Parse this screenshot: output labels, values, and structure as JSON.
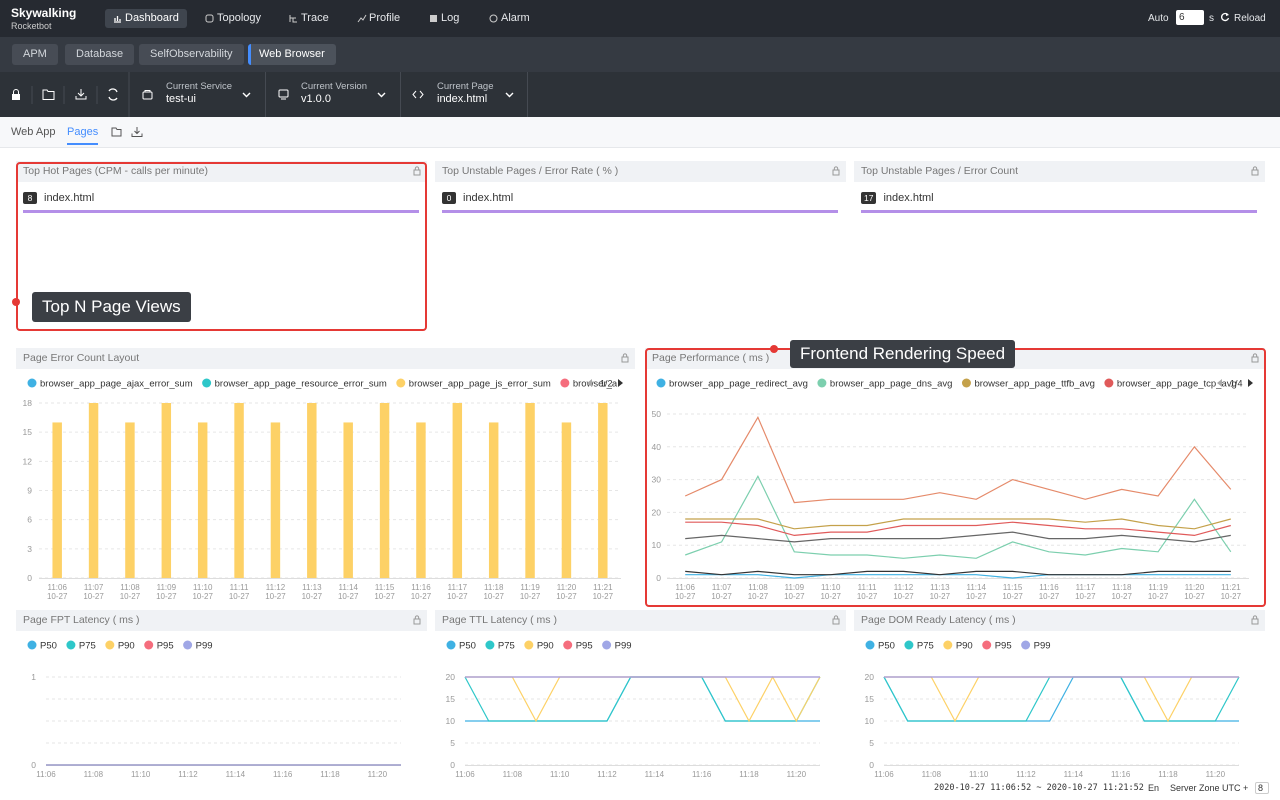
{
  "nav": {
    "logo": "Skywalking",
    "logo_sub": "Rocketbot",
    "menu": [
      "Dashboard",
      "Topology",
      "Trace",
      "Profile",
      "Log",
      "Alarm"
    ],
    "auto": "Auto",
    "interval": 6,
    "unit": "s",
    "reload": "Reload"
  },
  "groups": [
    "APM",
    "Database",
    "SelfObservability",
    "Web Browser"
  ],
  "selectors": [
    {
      "label": "Current Service",
      "value": "test-ui"
    },
    {
      "label": "Current Version",
      "value": "v1.0.0"
    },
    {
      "label": "Current Page",
      "value": "index.html"
    }
  ],
  "tabs": [
    "Web App",
    "Pages"
  ],
  "topn": [
    {
      "title": "Top Hot Pages (CPM - calls per minute)",
      "items": [
        {
          "count": 8,
          "label": "index.html"
        }
      ]
    },
    {
      "title": "Top Unstable Pages / Error Rate ( % )",
      "items": [
        {
          "count": 0,
          "label": "index.html"
        }
      ]
    },
    {
      "title": "Top Unstable Pages / Error Count",
      "items": [
        {
          "count": 17,
          "label": "index.html"
        }
      ]
    }
  ],
  "annotations": [
    "Top N Page Views",
    "Frontend Rendering Speed"
  ],
  "chart_data": [
    {
      "type": "bar",
      "title": "Page Error Count Layout",
      "legend_page": "1/2",
      "grid": true,
      "categories": [
        "11:06",
        "11:07",
        "11:08",
        "11:09",
        "11:10",
        "11:11",
        "11:12",
        "11:13",
        "11:14",
        "11:15",
        "11:16",
        "11:17",
        "11:18",
        "11:19",
        "11:20",
        "11:21"
      ],
      "x_sublabels": [
        "10-27",
        "10-27",
        "10-27",
        "10-27",
        "10-27",
        "10-27",
        "10-27",
        "10-27",
        "10-27",
        "10-27",
        "10-27",
        "10-27",
        "10-27",
        "10-27",
        "10-27",
        "10-27"
      ],
      "ylim": [
        0,
        18
      ],
      "yticks": [
        0,
        3,
        6,
        9,
        12,
        15,
        18
      ],
      "series": [
        {
          "name": "browser_app_page_ajax_error_sum",
          "color": "#3fb1e3",
          "values": [
            0,
            0,
            0,
            0,
            0,
            0,
            0,
            0,
            0,
            0,
            0,
            0,
            0,
            0,
            0,
            0
          ]
        },
        {
          "name": "browser_app_page_resource_error_sum",
          "color": "#2ec7c9",
          "values": [
            0,
            0,
            0,
            0,
            0,
            0,
            0,
            0,
            0,
            0,
            0,
            0,
            0,
            0,
            0,
            0
          ]
        },
        {
          "name": "browser_app_page_js_error_sum",
          "color": "#fdd166",
          "values": [
            16,
            18,
            16,
            18,
            16,
            18,
            16,
            18,
            16,
            18,
            16,
            18,
            16,
            18,
            16,
            18
          ]
        },
        {
          "name": "browser_a",
          "color": "#f56d7d",
          "values": [
            0,
            0,
            0,
            0,
            0,
            0,
            0,
            0,
            0,
            0,
            0,
            0,
            0,
            0,
            0,
            0
          ]
        }
      ]
    },
    {
      "type": "line",
      "title": "Page Performance ( ms )",
      "legend_page": "1/4",
      "grid": true,
      "categories": [
        "11:06",
        "11:07",
        "11:08",
        "11:09",
        "11:10",
        "11:11",
        "11:12",
        "11:13",
        "11:14",
        "11:15",
        "11:16",
        "11:17",
        "11:18",
        "11:19",
        "11:20",
        "11:21"
      ],
      "x_sublabels": [
        "10-27",
        "10-27",
        "10-27",
        "10-27",
        "10-27",
        "10-27",
        "10-27",
        "10-27",
        "10-27",
        "10-27",
        "10-27",
        "10-27",
        "10-27",
        "10-27",
        "10-27",
        "10-27"
      ],
      "ylim": [
        0,
        50
      ],
      "yticks": [
        0,
        10,
        20,
        30,
        40,
        50
      ],
      "series": [
        {
          "name": "browser_app_page_redirect_avg",
          "color": "#3fb1e3",
          "values": [
            1,
            1,
            1,
            0,
            1,
            1,
            1,
            1,
            1,
            0,
            1,
            1,
            1,
            1,
            1,
            1
          ]
        },
        {
          "name": "browser_app_page_dns_avg",
          "color": "#7ccfae",
          "values": [
            7,
            11,
            31,
            8,
            7,
            7,
            6,
            7,
            6,
            11,
            8,
            7,
            9,
            8,
            24,
            8
          ]
        },
        {
          "name": "browser_app_page_ttfb_avg",
          "color": "#c4a14a",
          "values": [
            18,
            18,
            18,
            15,
            16,
            16,
            18,
            18,
            18,
            18,
            18,
            17,
            18,
            16,
            15,
            18
          ]
        },
        {
          "name": "browser_app_page_tcp_avg",
          "color": "#e05a5a",
          "values": [
            17,
            17,
            16,
            13,
            14,
            14,
            16,
            16,
            16,
            17,
            16,
            15,
            15,
            14,
            13,
            16
          ]
        },
        {
          "color": "#e58a6a",
          "values": [
            25,
            30,
            49,
            23,
            24,
            24,
            24,
            26,
            24,
            30,
            27,
            24,
            27,
            25,
            40,
            27
          ]
        },
        {
          "color": "#666666",
          "values": [
            12,
            13,
            12,
            11,
            12,
            12,
            12,
            12,
            13,
            14,
            12,
            12,
            13,
            12,
            11,
            13
          ]
        },
        {
          "color": "#333333",
          "values": [
            2,
            1,
            2,
            1,
            1,
            2,
            2,
            1,
            2,
            2,
            1,
            1,
            1,
            2,
            2,
            2
          ]
        }
      ]
    },
    {
      "type": "line",
      "title": "Page FPT Latency ( ms )",
      "grid": true,
      "categories": [
        "11:06",
        null,
        "11:08",
        null,
        "11:10",
        null,
        "11:12",
        null,
        "11:14",
        null,
        "11:16",
        null,
        "11:18",
        null,
        "11:20",
        null
      ],
      "ylim": [
        0,
        1
      ],
      "yticks": [
        0,
        1
      ],
      "ygrid": [
        0.25,
        0.5,
        0.75
      ],
      "series": [
        {
          "name": "P50",
          "color": "#3fb1e3",
          "values": [
            0,
            0,
            0,
            0,
            0,
            0,
            0,
            0,
            0,
            0,
            0,
            0,
            0,
            0,
            0,
            0
          ]
        },
        {
          "name": "P75",
          "color": "#2ec7c9",
          "values": [
            0,
            0,
            0,
            0,
            0,
            0,
            0,
            0,
            0,
            0,
            0,
            0,
            0,
            0,
            0,
            0
          ]
        },
        {
          "name": "P90",
          "color": "#fdd166",
          "values": [
            0,
            0,
            0,
            0,
            0,
            0,
            0,
            0,
            0,
            0,
            0,
            0,
            0,
            0,
            0,
            0
          ]
        },
        {
          "name": "P95",
          "color": "#f56d7d",
          "values": [
            0,
            0,
            0,
            0,
            0,
            0,
            0,
            0,
            0,
            0,
            0,
            0,
            0,
            0,
            0,
            0
          ]
        },
        {
          "name": "P99",
          "color": "#a0a7e6",
          "values": [
            0,
            0,
            0,
            0,
            0,
            0,
            0,
            0,
            0,
            0,
            0,
            0,
            0,
            0,
            0,
            0
          ]
        }
      ]
    },
    {
      "type": "line",
      "title": "Page TTL Latency ( ms )",
      "grid": true,
      "categories": [
        "11:06",
        null,
        "11:08",
        null,
        "11:10",
        null,
        "11:12",
        null,
        "11:14",
        null,
        "11:16",
        null,
        "11:18",
        null,
        "11:20",
        null
      ],
      "ylim": [
        0,
        20
      ],
      "yticks": [
        0,
        5,
        10,
        15,
        20
      ],
      "series": [
        {
          "name": "P50",
          "color": "#3fb1e3",
          "values": [
            10,
            10,
            10,
            10,
            10,
            10,
            10,
            20,
            20,
            20,
            20,
            10,
            10,
            10,
            10,
            10
          ]
        },
        {
          "name": "P75",
          "color": "#2ec7c9",
          "values": [
            20,
            10,
            10,
            10,
            10,
            10,
            10,
            20,
            20,
            20,
            20,
            10,
            10,
            10,
            10,
            20
          ]
        },
        {
          "name": "P90",
          "color": "#fdd166",
          "values": [
            20,
            20,
            20,
            10,
            20,
            20,
            20,
            20,
            20,
            20,
            20,
            20,
            10,
            20,
            10,
            20
          ]
        },
        {
          "name": "P95",
          "color": "#f56d7d",
          "values": [
            20,
            20,
            20,
            20,
            20,
            20,
            20,
            20,
            20,
            20,
            20,
            20,
            20,
            20,
            20,
            20
          ]
        },
        {
          "name": "P99",
          "color": "#a0a7e6",
          "values": [
            20,
            20,
            20,
            20,
            20,
            20,
            20,
            20,
            20,
            20,
            20,
            20,
            20,
            20,
            20,
            20
          ]
        }
      ]
    },
    {
      "type": "line",
      "title": "Page DOM Ready Latency ( ms )",
      "grid": true,
      "categories": [
        "11:06",
        null,
        "11:08",
        null,
        "11:10",
        null,
        "11:12",
        null,
        "11:14",
        null,
        "11:16",
        null,
        "11:18",
        null,
        "11:20",
        null
      ],
      "ylim": [
        0,
        20
      ],
      "yticks": [
        0,
        5,
        10,
        15,
        20
      ],
      "series": [
        {
          "name": "P50",
          "color": "#3fb1e3",
          "values": [
            20,
            10,
            10,
            10,
            10,
            10,
            10,
            10,
            20,
            20,
            20,
            10,
            10,
            10,
            10,
            10
          ]
        },
        {
          "name": "P75",
          "color": "#2ec7c9",
          "values": [
            20,
            10,
            10,
            10,
            10,
            10,
            10,
            20,
            20,
            20,
            20,
            10,
            10,
            10,
            10,
            20
          ]
        },
        {
          "name": "P90",
          "color": "#fdd166",
          "values": [
            20,
            20,
            20,
            10,
            20,
            20,
            20,
            20,
            20,
            20,
            20,
            20,
            10,
            20,
            20,
            20
          ]
        },
        {
          "name": "P95",
          "color": "#f56d7d",
          "values": [
            20,
            20,
            20,
            20,
            20,
            20,
            20,
            20,
            20,
            20,
            20,
            20,
            20,
            20,
            20,
            20
          ]
        },
        {
          "name": "P99",
          "color": "#a0a7e6",
          "values": [
            20,
            20,
            20,
            20,
            20,
            20,
            20,
            20,
            20,
            20,
            20,
            20,
            20,
            20,
            20,
            20
          ]
        }
      ]
    }
  ],
  "footer": {
    "range": "2020-10-27 11:06:52 ~ 2020-10-27 11:21:52",
    "lang": "En",
    "zone": "Server Zone UTC +",
    "offset": 8
  }
}
